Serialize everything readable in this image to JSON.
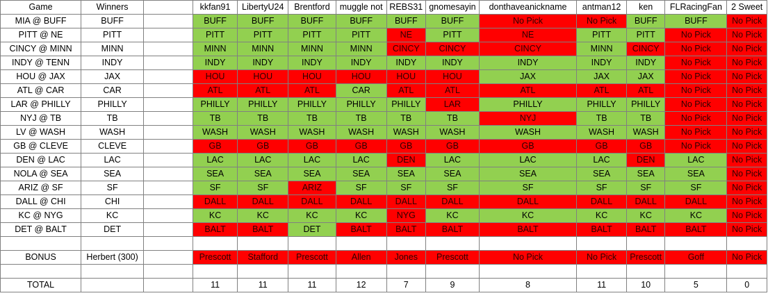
{
  "colors": {
    "correct": "#92d050",
    "incorrect": "#ff0000"
  },
  "headers": [
    "Game",
    "Winners",
    "",
    "kkfan91",
    "LibertyU24",
    "Brentford",
    "muggle not",
    "REBS31",
    "gnomesayin",
    "donthaveanickname",
    "antman12",
    "ken",
    "FLRacingFan",
    "2 Sweet"
  ],
  "games": [
    {
      "game": "MIA @ BUFF",
      "winner": "BUFF",
      "picks": [
        "BUFF",
        "BUFF",
        "BUFF",
        "BUFF",
        "BUFF",
        "BUFF",
        "No Pick",
        "No Pick",
        "BUFF",
        "BUFF",
        "No Pick"
      ],
      "status": [
        "g",
        "g",
        "g",
        "g",
        "g",
        "g",
        "r",
        "r",
        "g",
        "g",
        "r"
      ]
    },
    {
      "game": "PITT @ NE",
      "winner": "PITT",
      "picks": [
        "PITT",
        "PITT",
        "PITT",
        "PITT",
        "NE",
        "PITT",
        "NE",
        "PITT",
        "PITT",
        "No Pick",
        "No Pick"
      ],
      "status": [
        "g",
        "g",
        "g",
        "g",
        "r",
        "g",
        "r",
        "g",
        "g",
        "r",
        "r"
      ]
    },
    {
      "game": "CINCY @ MINN",
      "winner": "MINN",
      "picks": [
        "MINN",
        "MINN",
        "MINN",
        "MINN",
        "CINCY",
        "CINCY",
        "CINCY",
        "MINN",
        "CINCY",
        "No Pick",
        "No Pick"
      ],
      "status": [
        "g",
        "g",
        "g",
        "g",
        "r",
        "r",
        "r",
        "g",
        "r",
        "r",
        "r"
      ]
    },
    {
      "game": "INDY @ TENN",
      "winner": "INDY",
      "picks": [
        "INDY",
        "INDY",
        "INDY",
        "INDY",
        "INDY",
        "INDY",
        "INDY",
        "INDY",
        "INDY",
        "No Pick",
        "No Pick"
      ],
      "status": [
        "g",
        "g",
        "g",
        "g",
        "g",
        "g",
        "g",
        "g",
        "g",
        "r",
        "r"
      ]
    },
    {
      "game": "HOU @ JAX",
      "winner": "JAX",
      "picks": [
        "HOU",
        "HOU",
        "HOU",
        "HOU",
        "HOU",
        "HOU",
        "JAX",
        "JAX",
        "JAX",
        "No Pick",
        "No Pick"
      ],
      "status": [
        "r",
        "r",
        "r",
        "r",
        "r",
        "r",
        "g",
        "g",
        "g",
        "r",
        "r"
      ]
    },
    {
      "game": "ATL @ CAR",
      "winner": "CAR",
      "picks": [
        "ATL",
        "ATL",
        "ATL",
        "CAR",
        "ATL",
        "ATL",
        "ATL",
        "ATL",
        "ATL",
        "No Pick",
        "No Pick"
      ],
      "status": [
        "r",
        "r",
        "r",
        "g",
        "r",
        "r",
        "r",
        "r",
        "r",
        "r",
        "r"
      ]
    },
    {
      "game": "LAR @ PHILLY",
      "winner": "PHILLY",
      "picks": [
        "PHILLY",
        "PHILLY",
        "PHILLY",
        "PHILLY",
        "PHILLY",
        "LAR",
        "PHILLY",
        "PHILLY",
        "PHILLY",
        "No Pick",
        "No Pick"
      ],
      "status": [
        "g",
        "g",
        "g",
        "g",
        "g",
        "r",
        "g",
        "g",
        "g",
        "r",
        "r"
      ]
    },
    {
      "game": "NYJ @ TB",
      "winner": "TB",
      "picks": [
        "TB",
        "TB",
        "TB",
        "TB",
        "TB",
        "TB",
        "NYJ",
        "TB",
        "TB",
        "No Pick",
        "No Pick"
      ],
      "status": [
        "g",
        "g",
        "g",
        "g",
        "g",
        "g",
        "r",
        "g",
        "g",
        "r",
        "r"
      ]
    },
    {
      "game": "LV @ WASH",
      "winner": "WASH",
      "picks": [
        "WASH",
        "WASH",
        "WASH",
        "WASH",
        "WASH",
        "WASH",
        "WASH",
        "WASH",
        "WASH",
        "No Pick",
        "No Pick"
      ],
      "status": [
        "g",
        "g",
        "g",
        "g",
        "g",
        "g",
        "g",
        "g",
        "g",
        "r",
        "r"
      ]
    },
    {
      "game": "GB @ CLEVE",
      "winner": "CLEVE",
      "picks": [
        "GB",
        "GB",
        "GB",
        "GB",
        "GB",
        "GB",
        "GB",
        "GB",
        "GB",
        "No Pick",
        "No Pick"
      ],
      "status": [
        "r",
        "r",
        "r",
        "r",
        "r",
        "r",
        "r",
        "r",
        "r",
        "r",
        "r"
      ]
    },
    {
      "game": "DEN @ LAC",
      "winner": "LAC",
      "picks": [
        "LAC",
        "LAC",
        "LAC",
        "LAC",
        "DEN",
        "LAC",
        "LAC",
        "LAC",
        "DEN",
        "LAC",
        "No Pick"
      ],
      "status": [
        "g",
        "g",
        "g",
        "g",
        "r",
        "g",
        "g",
        "g",
        "r",
        "g",
        "r"
      ]
    },
    {
      "game": "NOLA @ SEA",
      "winner": "SEA",
      "picks": [
        "SEA",
        "SEA",
        "SEA",
        "SEA",
        "SEA",
        "SEA",
        "SEA",
        "SEA",
        "SEA",
        "SEA",
        "No Pick"
      ],
      "status": [
        "g",
        "g",
        "g",
        "g",
        "g",
        "g",
        "g",
        "g",
        "g",
        "g",
        "r"
      ]
    },
    {
      "game": "ARIZ @ SF",
      "winner": "SF",
      "picks": [
        "SF",
        "SF",
        "ARIZ",
        "SF",
        "SF",
        "SF",
        "SF",
        "SF",
        "SF",
        "SF",
        "No Pick"
      ],
      "status": [
        "g",
        "g",
        "r",
        "g",
        "g",
        "g",
        "g",
        "g",
        "g",
        "g",
        "r"
      ]
    },
    {
      "game": "DALL @ CHI",
      "winner": "CHI",
      "picks": [
        "DALL",
        "DALL",
        "DALL",
        "DALL",
        "DALL",
        "DALL",
        "DALL",
        "DALL",
        "DALL",
        "DALL",
        "No Pick"
      ],
      "status": [
        "r",
        "r",
        "r",
        "r",
        "r",
        "r",
        "r",
        "r",
        "r",
        "r",
        "r"
      ]
    },
    {
      "game": "KC @ NYG",
      "winner": "KC",
      "picks": [
        "KC",
        "KC",
        "KC",
        "KC",
        "NYG",
        "KC",
        "KC",
        "KC",
        "KC",
        "KC",
        "No Pick"
      ],
      "status": [
        "g",
        "g",
        "g",
        "g",
        "r",
        "g",
        "g",
        "g",
        "g",
        "g",
        "r"
      ]
    },
    {
      "game": "DET @ BALT",
      "winner": "DET",
      "picks": [
        "BALT",
        "BALT",
        "DET",
        "BALT",
        "BALT",
        "BALT",
        "BALT",
        "BALT",
        "BALT",
        "BALT",
        "No Pick"
      ],
      "status": [
        "r",
        "r",
        "g",
        "r",
        "r",
        "r",
        "r",
        "r",
        "r",
        "r",
        "r"
      ]
    }
  ],
  "bonus": {
    "label": "BONUS",
    "winner": "Herbert (300)",
    "picks": [
      "Prescott",
      "Stafford",
      "Prescott",
      "Allen",
      "Jones",
      "Prescott",
      "No Pick",
      "No Pick",
      "Prescott",
      "Goff",
      "No Pick"
    ]
  },
  "total": {
    "label": "TOTAL",
    "values": [
      "11",
      "11",
      "11",
      "12",
      "7",
      "9",
      "8",
      "11",
      "10",
      "5",
      "0"
    ]
  }
}
